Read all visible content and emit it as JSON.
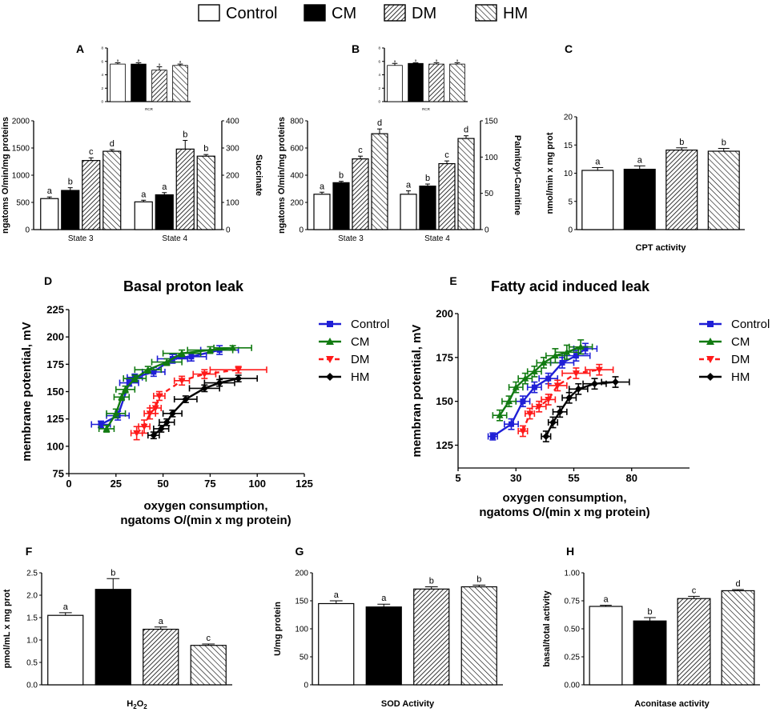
{
  "legend": {
    "items": [
      {
        "name": "Control",
        "fill": "white"
      },
      {
        "name": "CM",
        "fill": "black"
      },
      {
        "name": "DM",
        "fill": "hatch1"
      },
      {
        "name": "HM",
        "fill": "hatch2"
      }
    ]
  },
  "chart_data": [
    {
      "panel": "A",
      "type": "bar",
      "title": "RCR",
      "ylim": [
        0,
        8
      ],
      "yticks": [
        "0",
        "2",
        "4",
        "6",
        "8"
      ],
      "categories": [
        "Control",
        "CM",
        "DM",
        "HM"
      ],
      "values": [
        5.6,
        5.6,
        4.7,
        5.4
      ],
      "errors": [
        0.2,
        0.2,
        0.5,
        0.2
      ],
      "letters": [
        "a",
        "a",
        "a",
        "a"
      ]
    },
    {
      "panel": "A",
      "type": "bar",
      "ylabel": "ngatoms O/min/mg proteins",
      "ylabel_right": "Succinate",
      "ylim": [
        0,
        2000
      ],
      "yticks": [
        "0",
        "500",
        "1000",
        "1500",
        "2000"
      ],
      "yticks_right": [
        "0",
        "100",
        "200",
        "300",
        "400"
      ],
      "groups": [
        "State 3",
        "State 4"
      ],
      "series": [
        {
          "name": "Control",
          "values": [
            570,
            510
          ],
          "errors": [
            30,
            30
          ],
          "letters": [
            "a",
            "a"
          ]
        },
        {
          "name": "CM",
          "values": [
            720,
            640
          ],
          "errors": [
            50,
            40
          ],
          "letters": [
            "b",
            "a"
          ]
        },
        {
          "name": "DM",
          "values": [
            1270,
            1480
          ],
          "errors": [
            50,
            160
          ],
          "letters": [
            "c",
            "b"
          ]
        },
        {
          "name": "HM",
          "values": [
            1440,
            1350
          ],
          "errors": [
            30,
            30
          ],
          "letters": [
            "d",
            "b"
          ]
        }
      ]
    },
    {
      "panel": "B",
      "type": "bar",
      "title": "RCR",
      "ylim": [
        0,
        8
      ],
      "yticks": [
        "0",
        "2",
        "4",
        "6",
        "8"
      ],
      "categories": [
        "Control",
        "CM",
        "DM",
        "HM"
      ],
      "values": [
        5.4,
        5.7,
        5.6,
        5.6
      ],
      "errors": [
        0.3,
        0.1,
        0.2,
        0.2
      ],
      "letters": [
        "a",
        "a",
        "a",
        "a"
      ]
    },
    {
      "panel": "B",
      "type": "bar",
      "ylabel": "ngatoms O/min/mg proteins",
      "ylabel_right": "Palmitoyl-Carnitine",
      "ylim": [
        0,
        800
      ],
      "yticks": [
        "0",
        "200",
        "400",
        "600",
        "800"
      ],
      "yticks_right": [
        "0",
        "50",
        "100",
        "150"
      ],
      "groups": [
        "State 3",
        "State 4"
      ],
      "series": [
        {
          "name": "Control",
          "values": [
            260,
            260
          ],
          "errors": [
            15,
            25
          ],
          "letters": [
            "a",
            "a"
          ]
        },
        {
          "name": "CM",
          "values": [
            345,
            320
          ],
          "errors": [
            10,
            15
          ],
          "letters": [
            "b",
            "b"
          ]
        },
        {
          "name": "DM",
          "values": [
            520,
            485
          ],
          "errors": [
            20,
            20
          ],
          "letters": [
            "c",
            "c"
          ]
        },
        {
          "name": "HM",
          "values": [
            705,
            670
          ],
          "errors": [
            35,
            20
          ],
          "letters": [
            "d",
            "d"
          ]
        }
      ]
    },
    {
      "panel": "C",
      "type": "bar",
      "title": "CPT activity",
      "ylabel": "nmol/min x mg prot",
      "ylim": [
        0,
        20
      ],
      "yticks": [
        "0",
        "5",
        "10",
        "15",
        "20"
      ],
      "categories": [
        "Control",
        "CM",
        "DM",
        "HM"
      ],
      "values": [
        10.5,
        10.7,
        14.1,
        13.9
      ],
      "errors": [
        0.5,
        0.6,
        0.4,
        0.5
      ],
      "letters": [
        "a",
        "a",
        "b",
        "b"
      ]
    },
    {
      "panel": "D",
      "type": "line",
      "title": "Basal proton leak",
      "xlabel_line1": "oxygen consumption,",
      "xlabel_line2": "ngatoms O/(min x mg protein)",
      "ylabel": "membrane potential, mV",
      "xlim": [
        0,
        125
      ],
      "ylim": [
        75,
        225
      ],
      "xticks": [
        "0",
        "25",
        "50",
        "75",
        "100",
        "125"
      ],
      "yticks": [
        "75",
        "100",
        "125",
        "150",
        "175",
        "200",
        "225"
      ],
      "series": [
        {
          "name": "Control",
          "color": "#1f1fd6",
          "marker": "square",
          "dash": false,
          "points": [
            [
              17,
              120
            ],
            [
              26,
              128
            ],
            [
              32,
              158
            ],
            [
              35,
              163
            ],
            [
              45,
              168
            ],
            [
              55,
              180
            ],
            [
              65,
              182
            ],
            [
              80,
              188
            ]
          ],
          "xerr": [
            5,
            6,
            5,
            4,
            6,
            8,
            8,
            10
          ],
          "yerr": [
            3,
            4,
            3,
            3,
            4,
            4,
            4,
            4
          ]
        },
        {
          "name": "CM",
          "color": "#117a11",
          "marker": "triangle",
          "dash": false,
          "points": [
            [
              20,
              116
            ],
            [
              25,
              130
            ],
            [
              28,
              145
            ],
            [
              30,
              152
            ],
            [
              35,
              162
            ],
            [
              42,
              170
            ],
            [
              52,
              177
            ],
            [
              60,
              185
            ],
            [
              75,
              188
            ],
            [
              87,
              190
            ]
          ],
          "xerr": [
            4,
            5,
            4,
            5,
            6,
            7,
            8,
            10,
            12,
            10
          ],
          "yerr": [
            3,
            4,
            3,
            3,
            3,
            3,
            3,
            3,
            3,
            2
          ]
        },
        {
          "name": "DM",
          "color": "#ff1a1a",
          "marker": "triangle-down",
          "dash": true,
          "points": [
            [
              36,
              112
            ],
            [
              40,
              118
            ],
            [
              43,
              130
            ],
            [
              46,
              135
            ],
            [
              48,
              146
            ],
            [
              60,
              160
            ],
            [
              72,
              166
            ],
            [
              90,
              170
            ]
          ],
          "xerr": [
            3,
            3,
            3,
            3,
            3,
            4,
            6,
            15
          ],
          "yerr": [
            6,
            6,
            5,
            5,
            4,
            4,
            4,
            3
          ]
        },
        {
          "name": "HM",
          "color": "#000000",
          "marker": "diamond",
          "dash": false,
          "points": [
            [
              45,
              110
            ],
            [
              49,
              116
            ],
            [
              52,
              122
            ],
            [
              55,
              130
            ],
            [
              62,
              143
            ],
            [
              72,
              153
            ],
            [
              80,
              158
            ],
            [
              90,
              162
            ]
          ],
          "xerr": [
            3,
            4,
            4,
            5,
            6,
            8,
            8,
            10
          ],
          "yerr": [
            3,
            3,
            3,
            3,
            3,
            3,
            3,
            3
          ]
        }
      ]
    },
    {
      "panel": "E",
      "type": "line",
      "title": "Fatty acid induced leak",
      "xlabel_line1": "oxygen consumption,",
      "xlabel_line2": "ngatoms O/(min x mg protein)",
      "ylabel": "membran potential, mV",
      "xlim": [
        5,
        105
      ],
      "ylim": [
        112,
        200
      ],
      "xticks": [
        "5",
        "30",
        "55",
        "80"
      ],
      "yticks": [
        "125",
        "150",
        "175",
        "200"
      ],
      "series": [
        {
          "name": "Control",
          "color": "#1f1fd6",
          "marker": "square",
          "dash": false,
          "points": [
            [
              20,
              130
            ],
            [
              28,
              137
            ],
            [
              33,
              150
            ],
            [
              38,
              158
            ],
            [
              44,
              163
            ],
            [
              50,
              172
            ],
            [
              56,
              176
            ],
            [
              60,
              180
            ]
          ],
          "xerr": [
            2,
            3,
            3,
            3,
            4,
            5,
            6,
            5
          ],
          "yerr": [
            2,
            3,
            3,
            3,
            3,
            3,
            3,
            3
          ]
        },
        {
          "name": "CM",
          "color": "#117a11",
          "marker": "triangle",
          "dash": false,
          "points": [
            [
              23,
              142
            ],
            [
              27,
              150
            ],
            [
              30,
              158
            ],
            [
              34,
              163
            ],
            [
              38,
              167
            ],
            [
              42,
              172
            ],
            [
              47,
              176
            ],
            [
              52,
              178
            ],
            [
              58,
              181
            ]
          ],
          "xerr": [
            3,
            3,
            3,
            3,
            3,
            3,
            4,
            5,
            5
          ],
          "yerr": [
            3,
            3,
            3,
            3,
            3,
            3,
            4,
            4,
            4
          ]
        },
        {
          "name": "DM",
          "color": "#ff1a1a",
          "marker": "triangle-down",
          "dash": true,
          "points": [
            [
              33,
              133
            ],
            [
              36,
              143
            ],
            [
              40,
              147
            ],
            [
              44,
              151
            ],
            [
              48,
              159
            ],
            [
              56,
              166
            ],
            [
              66,
              168
            ]
          ],
          "xerr": [
            2,
            2,
            3,
            3,
            4,
            6,
            6
          ],
          "yerr": [
            3,
            3,
            3,
            3,
            3,
            3,
            3
          ]
        },
        {
          "name": "HM",
          "color": "#000000",
          "marker": "diamond",
          "dash": false,
          "points": [
            [
              43,
              130
            ],
            [
              46,
              138
            ],
            [
              49,
              144
            ],
            [
              53,
              152
            ],
            [
              57,
              157
            ],
            [
              64,
              160
            ],
            [
              73,
              161
            ]
          ],
          "xerr": [
            2,
            2,
            3,
            3,
            4,
            5,
            6
          ],
          "yerr": [
            3,
            3,
            3,
            3,
            3,
            3,
            3
          ]
        }
      ]
    },
    {
      "panel": "F",
      "type": "bar",
      "title": "H2O2",
      "ylabel": "pmol/mL x mg prot",
      "ylim": [
        0,
        2.5
      ],
      "yticks": [
        "0.0",
        "0.5",
        "1.0",
        "1.5",
        "2.0",
        "2.5"
      ],
      "categories": [
        "Control",
        "CM",
        "DM",
        "HM"
      ],
      "values": [
        1.55,
        2.13,
        1.24,
        0.88
      ],
      "errors": [
        0.06,
        0.24,
        0.05,
        0.03
      ],
      "letters": [
        "a",
        "b",
        "a",
        "c"
      ]
    },
    {
      "panel": "G",
      "type": "bar",
      "title": "SOD Activity",
      "ylabel": "U/mg protein",
      "ylim": [
        0,
        200
      ],
      "yticks": [
        "0",
        "50",
        "100",
        "150",
        "200"
      ],
      "categories": [
        "Control",
        "CM",
        "DM",
        "HM"
      ],
      "values": [
        145,
        139,
        171,
        175
      ],
      "errors": [
        5,
        5,
        4,
        3
      ],
      "letters": [
        "a",
        "a",
        "b",
        "b"
      ]
    },
    {
      "panel": "H",
      "type": "bar",
      "title": "Aconitase activity",
      "ylabel": "basal/total activity",
      "ylim": [
        0,
        1.0
      ],
      "yticks": [
        "0.00",
        "0.25",
        "0.50",
        "0.75",
        "1.00"
      ],
      "categories": [
        "Control",
        "CM",
        "DM",
        "HM"
      ],
      "values": [
        0.7,
        0.57,
        0.77,
        0.84
      ],
      "errors": [
        0.01,
        0.03,
        0.02,
        0.01
      ],
      "letters": [
        "a",
        "b",
        "c",
        "d"
      ]
    }
  ]
}
